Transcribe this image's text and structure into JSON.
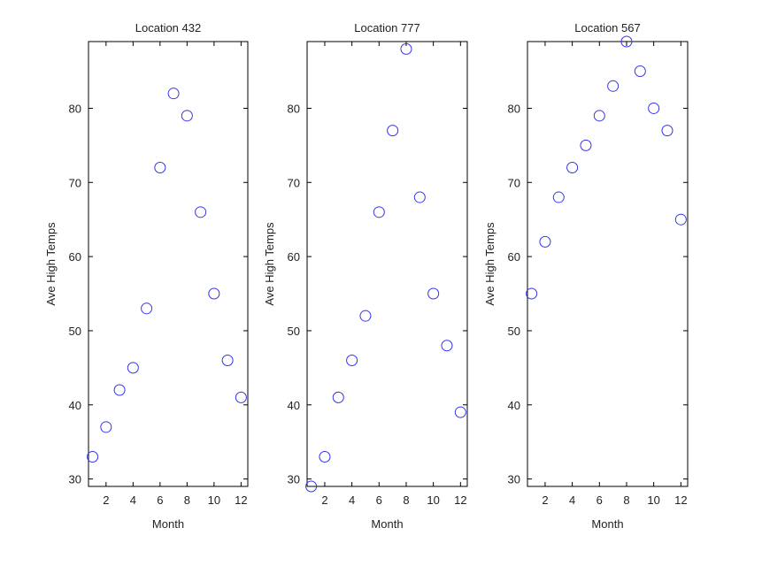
{
  "figure": {
    "marker_color": "#3333ee",
    "marker_shape": "circle"
  },
  "chart_data": [
    {
      "type": "scatter",
      "title": "Location 432",
      "xlabel": "Month",
      "ylabel": "Ave High Temps",
      "xlim": [
        0.7,
        12.5
      ],
      "ylim": [
        29,
        89
      ],
      "xticks": [
        2,
        4,
        6,
        8,
        10,
        12
      ],
      "yticks": [
        30,
        40,
        50,
        60,
        70,
        80
      ],
      "grid": false,
      "x": [
        1,
        2,
        3,
        4,
        5,
        6,
        7,
        8,
        9,
        10,
        11,
        12
      ],
      "y": [
        33,
        37,
        42,
        45,
        53,
        72,
        82,
        79,
        66,
        55,
        46,
        41
      ]
    },
    {
      "type": "scatter",
      "title": "Location 777",
      "xlabel": "Month",
      "ylabel": "Ave High Temps",
      "xlim": [
        0.7,
        12.5
      ],
      "ylim": [
        29,
        89
      ],
      "xticks": [
        2,
        4,
        6,
        8,
        10,
        12
      ],
      "yticks": [
        30,
        40,
        50,
        60,
        70,
        80
      ],
      "grid": false,
      "x": [
        1,
        2,
        3,
        4,
        5,
        6,
        7,
        8,
        9,
        10,
        11,
        12
      ],
      "y": [
        29,
        33,
        41,
        46,
        52,
        66,
        77,
        88,
        68,
        55,
        48,
        39
      ]
    },
    {
      "type": "scatter",
      "title": "Location 567",
      "xlabel": "Month",
      "ylabel": "Ave High Temps",
      "xlim": [
        0.7,
        12.5
      ],
      "ylim": [
        29,
        89
      ],
      "xticks": [
        2,
        4,
        6,
        8,
        10,
        12
      ],
      "yticks": [
        30,
        40,
        50,
        60,
        70,
        80
      ],
      "grid": false,
      "x": [
        1,
        2,
        3,
        4,
        5,
        6,
        7,
        8,
        9,
        10,
        11,
        12
      ],
      "y": [
        55,
        62,
        68,
        72,
        75,
        79,
        83,
        89,
        85,
        80,
        77,
        65
      ]
    }
  ]
}
